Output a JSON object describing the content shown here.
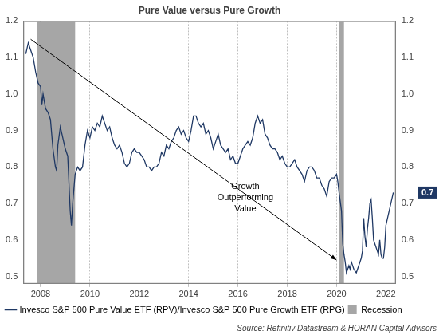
{
  "chart_data": {
    "type": "line",
    "title": "Pure Value versus Pure Growth",
    "x": [
      2007.4,
      2007.5,
      2007.6,
      2007.7,
      2007.8,
      2007.9,
      2008.0,
      2008.05,
      2008.1,
      2008.2,
      2008.3,
      2008.4,
      2008.5,
      2008.6,
      2008.65,
      2008.7,
      2008.8,
      2008.9,
      2009.0,
      2009.1,
      2009.2,
      2009.25,
      2009.3,
      2009.4,
      2009.5,
      2009.6,
      2009.7,
      2009.8,
      2009.9,
      2010.0,
      2010.1,
      2010.2,
      2010.3,
      2010.4,
      2010.5,
      2010.6,
      2010.7,
      2010.8,
      2010.9,
      2011.0,
      2011.1,
      2011.2,
      2011.3,
      2011.4,
      2011.5,
      2011.6,
      2011.7,
      2011.8,
      2011.9,
      2012.0,
      2012.1,
      2012.2,
      2012.3,
      2012.4,
      2012.5,
      2012.6,
      2012.7,
      2012.8,
      2012.9,
      2013.0,
      2013.1,
      2013.2,
      2013.3,
      2013.4,
      2013.5,
      2013.6,
      2013.7,
      2013.8,
      2013.9,
      2014.0,
      2014.1,
      2014.2,
      2014.3,
      2014.4,
      2014.5,
      2014.6,
      2014.7,
      2014.8,
      2014.9,
      2015.0,
      2015.1,
      2015.2,
      2015.3,
      2015.4,
      2015.5,
      2015.6,
      2015.7,
      2015.8,
      2015.9,
      2016.0,
      2016.1,
      2016.2,
      2016.3,
      2016.4,
      2016.5,
      2016.6,
      2016.7,
      2016.8,
      2016.9,
      2017.0,
      2017.1,
      2017.2,
      2017.3,
      2017.4,
      2017.5,
      2017.6,
      2017.7,
      2017.8,
      2017.9,
      2018.0,
      2018.1,
      2018.2,
      2018.3,
      2018.4,
      2018.5,
      2018.6,
      2018.7,
      2018.8,
      2018.9,
      2019.0,
      2019.1,
      2019.2,
      2019.3,
      2019.4,
      2019.5,
      2019.6,
      2019.7,
      2019.8,
      2019.9,
      2020.0,
      2020.05,
      2020.1,
      2020.2,
      2020.25,
      2020.3,
      2020.35,
      2020.4,
      2020.5,
      2020.55,
      2020.6,
      2020.7,
      2020.8,
      2020.9,
      2021.0,
      2021.05,
      2021.1,
      2021.15,
      2021.2,
      2021.25,
      2021.3,
      2021.35,
      2021.4,
      2021.45,
      2021.5,
      2021.55,
      2021.6,
      2021.7,
      2021.75,
      2021.8,
      2021.85,
      2021.9,
      2021.95,
      2022.0,
      2022.1,
      2022.2,
      2022.3
    ],
    "series": [
      {
        "name": "Invesco S&P 500 Pure Value ETF (RPV)/Invesco S&P 500 Pure Growth ETF (RPG)",
        "color": "#1f3864",
        "values": [
          1.11,
          1.14,
          1.12,
          1.1,
          1.06,
          1.03,
          1.02,
          0.97,
          1.0,
          0.96,
          0.95,
          0.93,
          0.85,
          0.8,
          0.79,
          0.86,
          0.91,
          0.88,
          0.85,
          0.83,
          0.68,
          0.64,
          0.7,
          0.78,
          0.8,
          0.79,
          0.8,
          0.86,
          0.9,
          0.88,
          0.91,
          0.9,
          0.92,
          0.91,
          0.94,
          0.92,
          0.9,
          0.91,
          0.88,
          0.86,
          0.85,
          0.86,
          0.84,
          0.81,
          0.8,
          0.81,
          0.84,
          0.85,
          0.84,
          0.84,
          0.83,
          0.82,
          0.8,
          0.8,
          0.79,
          0.8,
          0.8,
          0.81,
          0.84,
          0.83,
          0.86,
          0.85,
          0.87,
          0.88,
          0.9,
          0.91,
          0.89,
          0.9,
          0.88,
          0.87,
          0.9,
          0.94,
          0.94,
          0.92,
          0.91,
          0.92,
          0.89,
          0.9,
          0.88,
          0.85,
          0.87,
          0.89,
          0.86,
          0.85,
          0.84,
          0.85,
          0.82,
          0.83,
          0.81,
          0.81,
          0.83,
          0.85,
          0.86,
          0.87,
          0.86,
          0.88,
          0.92,
          0.94,
          0.92,
          0.93,
          0.89,
          0.88,
          0.86,
          0.85,
          0.85,
          0.84,
          0.82,
          0.83,
          0.81,
          0.8,
          0.8,
          0.81,
          0.82,
          0.8,
          0.79,
          0.78,
          0.76,
          0.79,
          0.8,
          0.8,
          0.79,
          0.77,
          0.77,
          0.75,
          0.74,
          0.72,
          0.76,
          0.77,
          0.77,
          0.78,
          0.76,
          0.73,
          0.68,
          0.59,
          0.56,
          0.54,
          0.51,
          0.53,
          0.52,
          0.54,
          0.52,
          0.51,
          0.53,
          0.55,
          0.57,
          0.66,
          0.61,
          0.58,
          0.63,
          0.66,
          0.7,
          0.71,
          0.66,
          0.6,
          0.59,
          0.58,
          0.56,
          0.6,
          0.56,
          0.55,
          0.55,
          0.58,
          0.64,
          0.67,
          0.7,
          0.73
        ]
      }
    ],
    "end_label": {
      "value": 0.73,
      "label": "0.7"
    },
    "recessions": {
      "name": "Recession",
      "color": "#a6a6a6",
      "periods": [
        [
          2007.85,
          2009.4
        ],
        [
          2020.1,
          2020.3
        ]
      ]
    },
    "arrow": {
      "from": [
        2007.6,
        1.15
      ],
      "to": [
        2020.0,
        0.545
      ]
    },
    "annotation": {
      "text": [
        "Growth",
        "Outperforming",
        "Value"
      ],
      "x": 2016.3,
      "y": 0.715
    },
    "source": "Source: Refinitiv Datastream & HORAN Capital Advisors",
    "xlim": [
      2007.3,
      2022.4
    ],
    "xticks": [
      2008,
      2010,
      2012,
      2014,
      2016,
      2018,
      2020,
      2022
    ],
    "ylim": [
      0.48,
      1.2
    ],
    "yticks": [
      0.5,
      0.6,
      0.7,
      0.8,
      0.9,
      {
        "value": 1,
        "label": "1.0"
      },
      1.1,
      1.2
    ],
    "grid": "x",
    "legend": "bottom-left"
  }
}
